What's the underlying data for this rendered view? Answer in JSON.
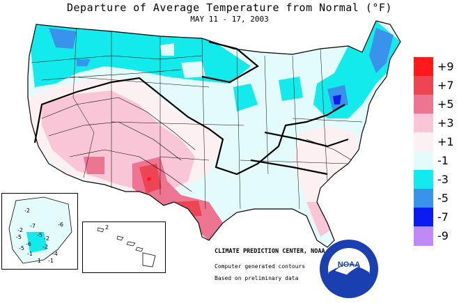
{
  "title": "Departure of Average Temperature from Normal (°F)",
  "subtitle": "MAY 11 - 17, 2003",
  "legend": [
    {
      "label": "+9",
      "color": "#ff1a1a"
    },
    {
      "label": "+7",
      "color": "#ee4555"
    },
    {
      "label": "+5",
      "color": "#ec7691"
    },
    {
      "label": "+3",
      "color": "#f8c6d6"
    },
    {
      "label": "+1",
      "color": "#fdf0f3"
    },
    {
      "label": "-1",
      "color": "#e3fbfb"
    },
    {
      "label": "-3",
      "color": "#13eaeb"
    },
    {
      "label": "-5",
      "color": "#3a93eb"
    },
    {
      "label": "-7",
      "color": "#0a1cf0"
    },
    {
      "label": "-9",
      "color": "#bf8af5"
    }
  ],
  "credits": {
    "center": "CLIMATE PREDICTION CENTER, NOAA",
    "line1": "Computer generated contours",
    "line2": "Based on preliminary data"
  },
  "logo_text": "NOAA",
  "alaska_labels": [
    "-2",
    "-7",
    "-6",
    "-2",
    "-5",
    "-2",
    "-5",
    "-6",
    "-2",
    "-1",
    "-4",
    "-5",
    "-1",
    "-1"
  ],
  "hawaii_labels": [
    "2"
  ]
}
